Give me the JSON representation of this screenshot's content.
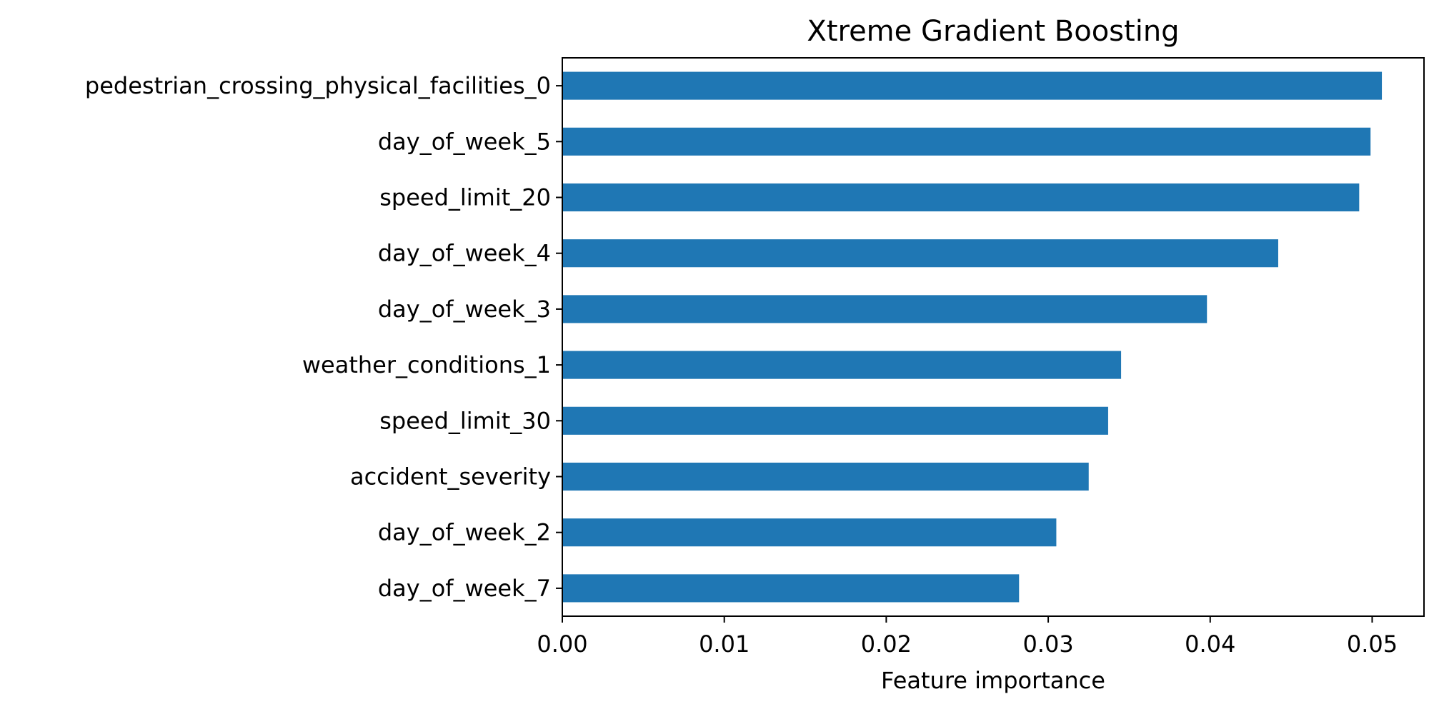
{
  "chart_data": {
    "type": "bar",
    "orientation": "horizontal",
    "title": "Xtreme Gradient Boosting",
    "xlabel": "Feature importance",
    "ylabel": "",
    "categories": [
      "pedestrian_crossing_physical_facilities_0",
      "day_of_week_5",
      "speed_limit_20",
      "day_of_week_4",
      "day_of_week_3",
      "weather_conditions_1",
      "speed_limit_30",
      "accident_severity",
      "day_of_week_2",
      "day_of_week_7"
    ],
    "values": [
      0.0506,
      0.0499,
      0.0492,
      0.0442,
      0.0398,
      0.0345,
      0.0337,
      0.0325,
      0.0305,
      0.0282
    ],
    "xticks": [
      "0.00",
      "0.01",
      "0.02",
      "0.03",
      "0.04",
      "0.05"
    ],
    "xlim": [
      0,
      0.0532
    ],
    "bar_color": "#1f77b4",
    "grid": false,
    "legend": "none"
  }
}
